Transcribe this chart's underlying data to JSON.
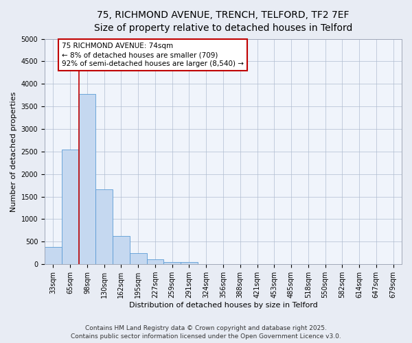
{
  "title_line1": "75, RICHMOND AVENUE, TRENCH, TELFORD, TF2 7EF",
  "title_line2": "Size of property relative to detached houses in Telford",
  "xlabel": "Distribution of detached houses by size in Telford",
  "ylabel": "Number of detached properties",
  "categories": [
    "33sqm",
    "65sqm",
    "98sqm",
    "130sqm",
    "162sqm",
    "195sqm",
    "227sqm",
    "259sqm",
    "291sqm",
    "324sqm",
    "356sqm",
    "388sqm",
    "421sqm",
    "453sqm",
    "485sqm",
    "518sqm",
    "550sqm",
    "582sqm",
    "614sqm",
    "647sqm",
    "679sqm"
  ],
  "bar_heights": [
    380,
    2550,
    3770,
    1660,
    620,
    245,
    105,
    50,
    50,
    0,
    0,
    0,
    0,
    0,
    0,
    0,
    0,
    0,
    0,
    0,
    0
  ],
  "bar_color": "#c5d8f0",
  "bar_edgecolor": "#5b9bd5",
  "ylim": [
    0,
    5000
  ],
  "yticks": [
    0,
    500,
    1000,
    1500,
    2000,
    2500,
    3000,
    3500,
    4000,
    4500,
    5000
  ],
  "vline_x": 1.5,
  "vline_color": "#c00000",
  "annotation_title": "75 RICHMOND AVENUE: 74sqm",
  "annotation_line1": "← 8% of detached houses are smaller (709)",
  "annotation_line2": "92% of semi-detached houses are larger (8,540) →",
  "annotation_box_edgecolor": "#c00000",
  "annotation_box_facecolor": "#ffffff",
  "grid_color": "#b0bcd0",
  "background_color": "#e8ecf4",
  "plot_bg_color": "#f0f4fb",
  "footer_line1": "Contains HM Land Registry data © Crown copyright and database right 2025.",
  "footer_line2": "Contains public sector information licensed under the Open Government Licence v3.0.",
  "title_fontsize": 10,
  "subtitle_fontsize": 9,
  "axis_label_fontsize": 8,
  "tick_fontsize": 7,
  "annotation_fontsize": 7.5,
  "footer_fontsize": 6.5
}
